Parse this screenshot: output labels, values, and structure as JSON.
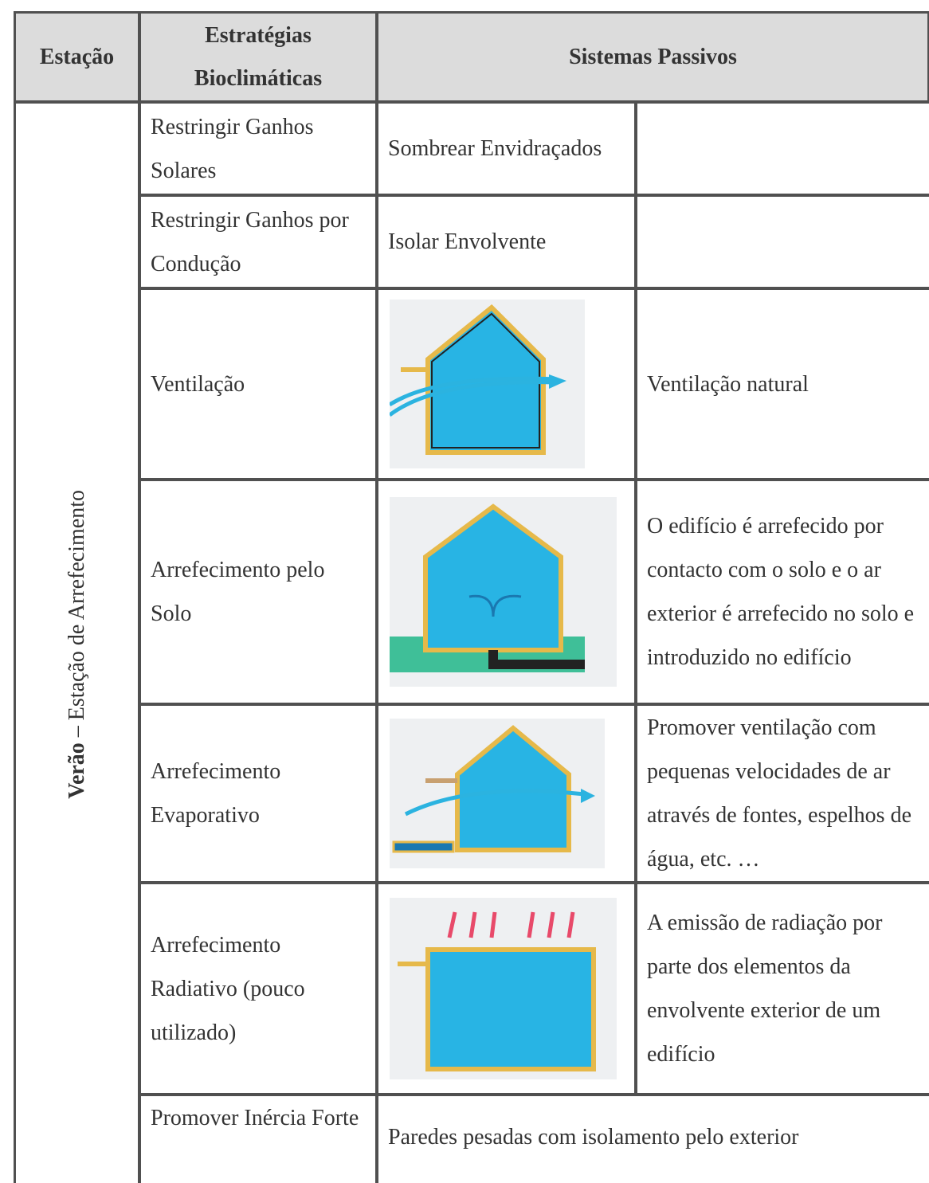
{
  "header": {
    "station": "Estação",
    "strategies": "Estratégias Bioclimáticas",
    "systems": "Sistemas Passivos"
  },
  "station_label": {
    "season": "Verão",
    "name": "– Estação de Arrefecimento"
  },
  "rows": [
    {
      "strategy": "Restringir Ganhos Solares",
      "system": "Sombrear Envidraçados"
    },
    {
      "strategy": "Restringir Ganhos por Condução",
      "system": "Isolar Envolvente"
    },
    {
      "strategy": "Ventilação",
      "description": "Ventilação natural"
    },
    {
      "strategy": "Arrefecimento pelo Solo",
      "description": "O edifício é arrefecido por contacto com o solo e o ar exterior é arrefecido no solo e introduzido no edifício"
    },
    {
      "strategy": "Arrefecimento Evaporativo",
      "description": "Promover ventilação com pequenas velocidades de ar através de fontes, espelhos de água, etc. …"
    },
    {
      "strategy": "Arrefecimento Radiativo (pouco utilizado)",
      "description": "A emissão de radiação por parte dos elementos da envolvente exterior de um edifício"
    },
    {
      "strategy": "Promover Inércia Forte",
      "system": "Paredes pesadas com isolamento pelo exterior"
    }
  ]
}
